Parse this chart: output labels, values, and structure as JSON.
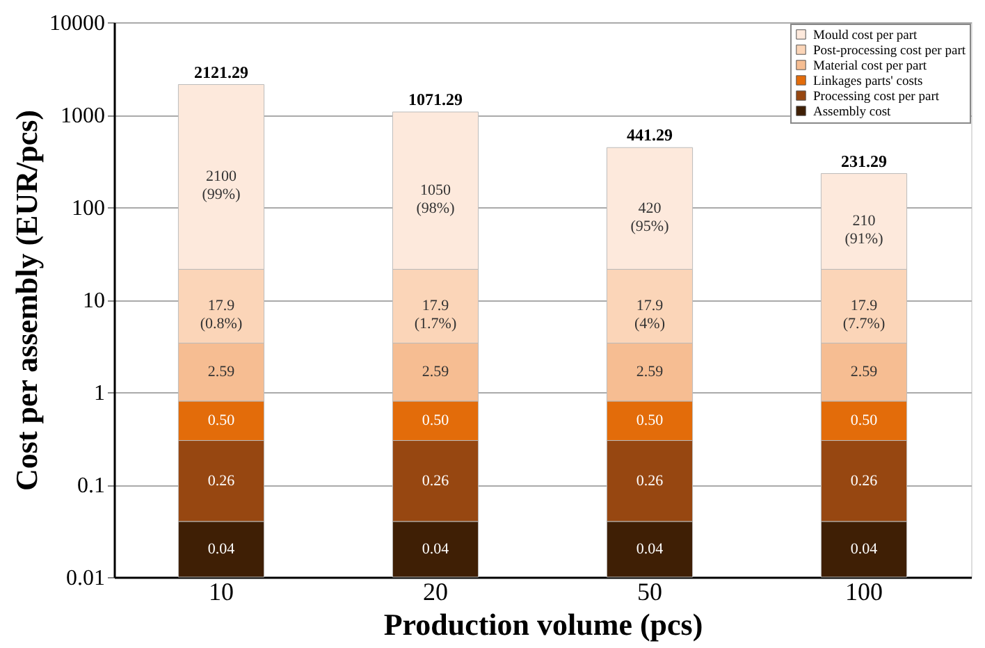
{
  "chart_data": {
    "type": "bar",
    "stacked": true,
    "log": true,
    "xlabel": "Production volume (pcs)",
    "ylabel": "Cost per assembly (EUR/pcs)",
    "categories": [
      "10",
      "20",
      "50",
      "100"
    ],
    "series": [
      {
        "name": "Assembly cost",
        "color": "#3f1f05",
        "values": [
          0.04,
          0.04,
          0.04,
          0.04
        ],
        "value_labels": [
          "0.04",
          "0.04",
          "0.04",
          "0.04"
        ]
      },
      {
        "name": "Processing cost per part",
        "color": "#974711",
        "values": [
          0.26,
          0.26,
          0.26,
          0.26
        ],
        "value_labels": [
          "0.26",
          "0.26",
          "0.26",
          "0.26"
        ]
      },
      {
        "name": "Linkages parts' costs",
        "color": "#e36c0a",
        "values": [
          0.5,
          0.5,
          0.5,
          0.5
        ],
        "value_labels": [
          "0.50",
          "0.50",
          "0.50",
          "0.50"
        ]
      },
      {
        "name": "Material cost per part",
        "color": "#f6bd92",
        "values": [
          2.59,
          2.59,
          2.59,
          2.59
        ],
        "value_labels": [
          "2.59",
          "2.59",
          "2.59",
          "2.59"
        ]
      },
      {
        "name": "Post-processing cost per part",
        "color": "#fbd5b8",
        "values": [
          17.9,
          17.9,
          17.9,
          17.9
        ],
        "value_labels": [
          "17.9\n(0.8%)",
          "17.9\n(1.7%)",
          "17.9\n(4%)",
          "17.9\n(7.7%)"
        ]
      },
      {
        "name": "Mould cost per part",
        "color": "#fde9dc",
        "values": [
          2100,
          1050,
          420,
          210
        ],
        "value_labels": [
          "2100\n(99%)",
          "1050\n(98%)",
          "420\n(95%)",
          "210\n(91%)"
        ]
      }
    ],
    "totals": [
      "2121.29",
      "1071.29",
      "441.29",
      "231.29"
    ],
    "ylim": [
      0.01,
      10000
    ],
    "yticks": [
      0.01,
      0.1,
      1,
      10,
      100,
      1000,
      10000
    ],
    "grid": "y",
    "legend": "top right"
  }
}
